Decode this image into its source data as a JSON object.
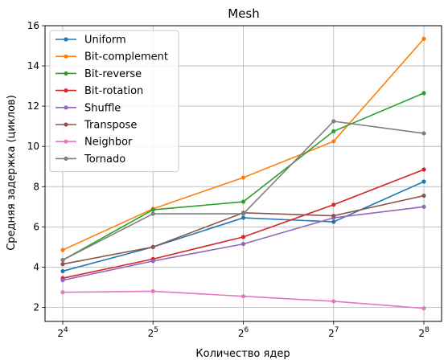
{
  "chart_data": {
    "type": "line",
    "title": "Mesh",
    "xlabel": "Количество ядер",
    "ylabel": "Средняя задержка (циклов)",
    "x_tick_labels": [
      {
        "base": "2",
        "exp": "4"
      },
      {
        "base": "2",
        "exp": "5"
      },
      {
        "base": "2",
        "exp": "6"
      },
      {
        "base": "2",
        "exp": "7"
      },
      {
        "base": "2",
        "exp": "8"
      }
    ],
    "x": [
      16,
      32,
      64,
      128,
      256
    ],
    "x_scale": "log2",
    "ylim": [
      1.3,
      16
    ],
    "y_ticks": [
      2,
      4,
      6,
      8,
      10,
      12,
      14,
      16
    ],
    "grid": true,
    "legend_position": "top-left",
    "series": [
      {
        "name": "Uniform",
        "color": "#1f77b4",
        "values": [
          3.8,
          5.0,
          6.45,
          6.25,
          8.25
        ]
      },
      {
        "name": "Bit-complement",
        "color": "#ff7f0e",
        "values": [
          4.85,
          6.9,
          8.45,
          10.25,
          15.35
        ]
      },
      {
        "name": "Bit-reverse",
        "color": "#2ca02c",
        "values": [
          4.35,
          6.85,
          7.25,
          10.75,
          12.65
        ]
      },
      {
        "name": "Bit-rotation",
        "color": "#d62728",
        "values": [
          3.45,
          4.4,
          5.5,
          7.1,
          8.85
        ]
      },
      {
        "name": "Shuffle",
        "color": "#9467bd",
        "values": [
          3.35,
          4.3,
          5.15,
          6.45,
          7.0
        ]
      },
      {
        "name": "Transpose",
        "color": "#8c564b",
        "values": [
          4.15,
          5.0,
          6.7,
          6.55,
          7.55
        ]
      },
      {
        "name": "Neighbor",
        "color": "#e377c2",
        "values": [
          2.75,
          2.8,
          2.55,
          2.3,
          1.95
        ]
      },
      {
        "name": "Tornado",
        "color": "#7f7f7f",
        "values": [
          4.35,
          6.65,
          6.65,
          11.25,
          10.65
        ]
      }
    ]
  }
}
